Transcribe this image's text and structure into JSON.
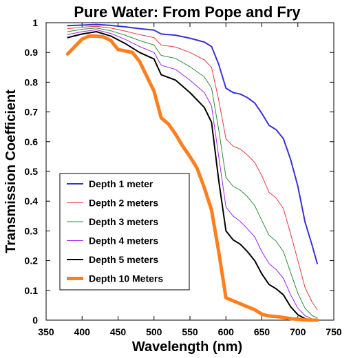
{
  "chart_data": {
    "type": "line",
    "title": "Pure Water: From Pope and Fry",
    "xlabel": "Wavelength (nm)",
    "ylabel": "Transmission Coefficient",
    "xlim": [
      350,
      750
    ],
    "ylim": [
      0,
      1
    ],
    "x_ticks": [
      "350",
      "400",
      "450",
      "500",
      "550",
      "600",
      "650",
      "700",
      "750"
    ],
    "y_ticks": [
      "0",
      "0.1",
      "0.2",
      "0.3",
      "0.4",
      "0.5",
      "0.6",
      "0.7",
      "0.8",
      "0.9",
      "1"
    ],
    "legend_position": "lower-left",
    "grid": false,
    "series": [
      {
        "name": "Depth 1 meter",
        "color": "#3a2fd6",
        "width": 2,
        "points": [
          [
            380,
            0.99
          ],
          [
            400,
            0.992
          ],
          [
            420,
            0.994
          ],
          [
            440,
            0.991
          ],
          [
            460,
            0.986
          ],
          [
            480,
            0.98
          ],
          [
            500,
            0.975
          ],
          [
            510,
            0.962
          ],
          [
            530,
            0.958
          ],
          [
            550,
            0.948
          ],
          [
            570,
            0.935
          ],
          [
            580,
            0.92
          ],
          [
            590,
            0.86
          ],
          [
            600,
            0.78
          ],
          [
            610,
            0.765
          ],
          [
            620,
            0.76
          ],
          [
            630,
            0.748
          ],
          [
            640,
            0.73
          ],
          [
            650,
            0.695
          ],
          [
            660,
            0.655
          ],
          [
            670,
            0.64
          ],
          [
            680,
            0.61
          ],
          [
            690,
            0.54
          ],
          [
            700,
            0.45
          ],
          [
            710,
            0.33
          ],
          [
            720,
            0.25
          ],
          [
            727,
            0.19
          ]
        ]
      },
      {
        "name": "Depth 2 meters",
        "color": "#e8383d",
        "width": 1,
        "points": [
          [
            380,
            0.98
          ],
          [
            400,
            0.985
          ],
          [
            420,
            0.988
          ],
          [
            440,
            0.982
          ],
          [
            460,
            0.972
          ],
          [
            480,
            0.96
          ],
          [
            500,
            0.95
          ],
          [
            510,
            0.925
          ],
          [
            530,
            0.918
          ],
          [
            550,
            0.9
          ],
          [
            570,
            0.875
          ],
          [
            580,
            0.85
          ],
          [
            590,
            0.74
          ],
          [
            600,
            0.61
          ],
          [
            610,
            0.585
          ],
          [
            620,
            0.575
          ],
          [
            630,
            0.555
          ],
          [
            640,
            0.53
          ],
          [
            650,
            0.485
          ],
          [
            660,
            0.43
          ],
          [
            670,
            0.41
          ],
          [
            680,
            0.375
          ],
          [
            690,
            0.29
          ],
          [
            700,
            0.2
          ],
          [
            710,
            0.11
          ],
          [
            720,
            0.06
          ],
          [
            727,
            0.035
          ]
        ]
      },
      {
        "name": "Depth 3 meters",
        "color": "#2e8b3a",
        "width": 1,
        "points": [
          [
            380,
            0.97
          ],
          [
            400,
            0.978
          ],
          [
            420,
            0.982
          ],
          [
            440,
            0.973
          ],
          [
            460,
            0.958
          ],
          [
            480,
            0.94
          ],
          [
            500,
            0.925
          ],
          [
            510,
            0.89
          ],
          [
            530,
            0.88
          ],
          [
            550,
            0.852
          ],
          [
            570,
            0.818
          ],
          [
            580,
            0.78
          ],
          [
            590,
            0.64
          ],
          [
            600,
            0.48
          ],
          [
            610,
            0.45
          ],
          [
            620,
            0.437
          ],
          [
            630,
            0.415
          ],
          [
            640,
            0.385
          ],
          [
            650,
            0.335
          ],
          [
            660,
            0.285
          ],
          [
            670,
            0.265
          ],
          [
            680,
            0.23
          ],
          [
            690,
            0.16
          ],
          [
            700,
            0.09
          ],
          [
            710,
            0.04
          ],
          [
            720,
            0.015
          ],
          [
            727,
            0.008
          ]
        ]
      },
      {
        "name": "Depth 4 meters",
        "color": "#a020f0",
        "width": 1,
        "points": [
          [
            380,
            0.96
          ],
          [
            400,
            0.97
          ],
          [
            420,
            0.976
          ],
          [
            440,
            0.964
          ],
          [
            460,
            0.944
          ],
          [
            480,
            0.92
          ],
          [
            500,
            0.9
          ],
          [
            510,
            0.857
          ],
          [
            530,
            0.843
          ],
          [
            550,
            0.807
          ],
          [
            570,
            0.765
          ],
          [
            580,
            0.72
          ],
          [
            590,
            0.55
          ],
          [
            600,
            0.38
          ],
          [
            610,
            0.35
          ],
          [
            620,
            0.332
          ],
          [
            630,
            0.307
          ],
          [
            640,
            0.28
          ],
          [
            650,
            0.23
          ],
          [
            660,
            0.19
          ],
          [
            670,
            0.17
          ],
          [
            680,
            0.14
          ],
          [
            690,
            0.085
          ],
          [
            700,
            0.04
          ],
          [
            710,
            0.015
          ],
          [
            720,
            0.004
          ],
          [
            727,
            0.002
          ]
        ]
      },
      {
        "name": "Depth 5 meters",
        "color": "#000000",
        "width": 2,
        "points": [
          [
            380,
            0.95
          ],
          [
            400,
            0.962
          ],
          [
            420,
            0.97
          ],
          [
            440,
            0.955
          ],
          [
            460,
            0.93
          ],
          [
            480,
            0.9
          ],
          [
            500,
            0.878
          ],
          [
            510,
            0.825
          ],
          [
            530,
            0.807
          ],
          [
            550,
            0.765
          ],
          [
            570,
            0.715
          ],
          [
            580,
            0.665
          ],
          [
            590,
            0.47
          ],
          [
            600,
            0.3
          ],
          [
            610,
            0.27
          ],
          [
            620,
            0.255
          ],
          [
            630,
            0.23
          ],
          [
            640,
            0.2
          ],
          [
            650,
            0.155
          ],
          [
            660,
            0.12
          ],
          [
            670,
            0.105
          ],
          [
            680,
            0.085
          ],
          [
            690,
            0.045
          ],
          [
            700,
            0.018
          ],
          [
            710,
            0.005
          ],
          [
            720,
            0.001
          ],
          [
            727,
            0.0
          ]
        ]
      },
      {
        "name": "Depth 10 Meters",
        "color": "#ff7f1f",
        "width": 5,
        "points": [
          [
            380,
            0.895
          ],
          [
            390,
            0.92
          ],
          [
            400,
            0.945
          ],
          [
            410,
            0.955
          ],
          [
            420,
            0.955
          ],
          [
            430,
            0.952
          ],
          [
            440,
            0.94
          ],
          [
            450,
            0.91
          ],
          [
            460,
            0.905
          ],
          [
            470,
            0.9
          ],
          [
            480,
            0.87
          ],
          [
            490,
            0.82
          ],
          [
            500,
            0.77
          ],
          [
            510,
            0.68
          ],
          [
            520,
            0.66
          ],
          [
            530,
            0.625
          ],
          [
            540,
            0.585
          ],
          [
            550,
            0.55
          ],
          [
            560,
            0.51
          ],
          [
            570,
            0.445
          ],
          [
            580,
            0.37
          ],
          [
            590,
            0.23
          ],
          [
            600,
            0.075
          ],
          [
            610,
            0.065
          ],
          [
            620,
            0.055
          ],
          [
            630,
            0.045
          ],
          [
            640,
            0.035
          ],
          [
            650,
            0.02
          ],
          [
            660,
            0.014
          ],
          [
            670,
            0.012
          ],
          [
            680,
            0.009
          ],
          [
            690,
            0.005
          ],
          [
            700,
            0.003
          ],
          [
            710,
            0.001
          ],
          [
            720,
            0.0
          ],
          [
            727,
            0.0
          ]
        ]
      }
    ]
  }
}
